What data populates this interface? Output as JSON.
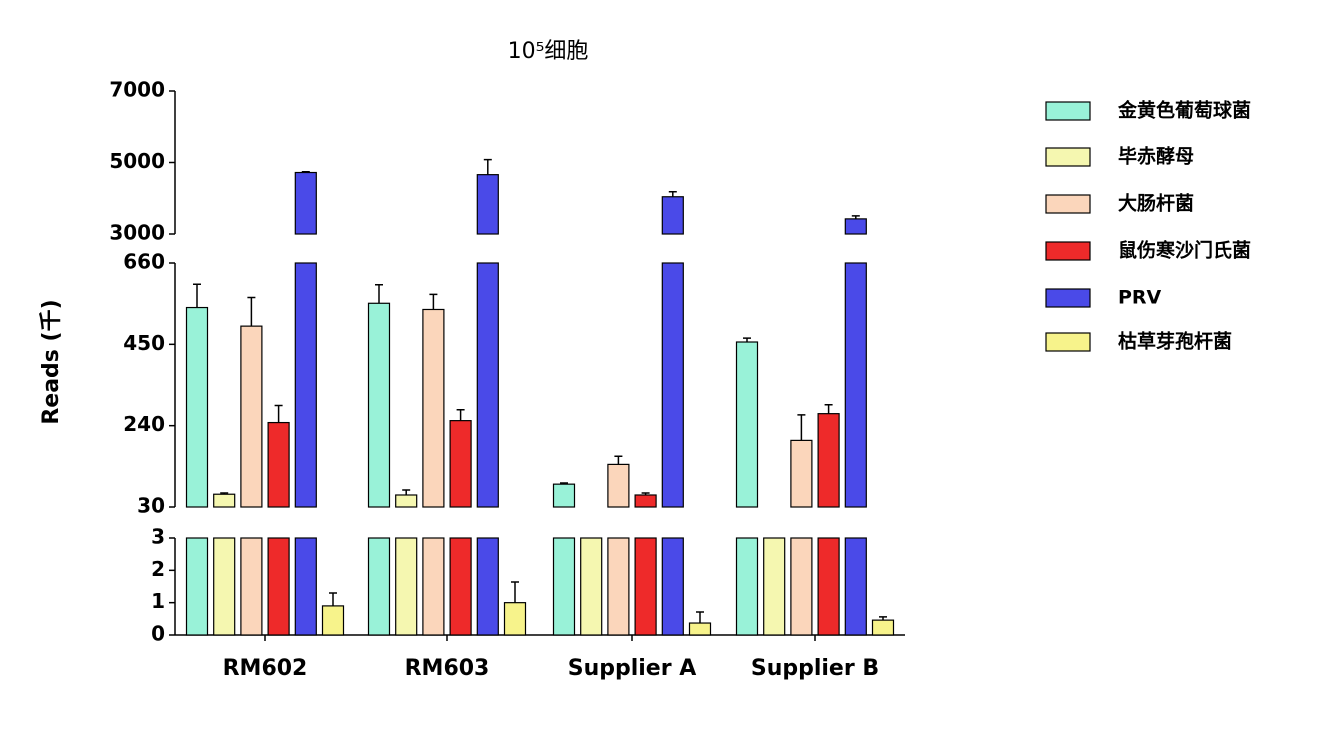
{
  "chart_data": {
    "type": "bar",
    "title": "10⁵细胞",
    "y_label": "Reads (千)",
    "categories": [
      "RM602",
      "RM603",
      "Supplier A",
      "Supplier B"
    ],
    "y_segments": [
      {
        "ylim": [
          0,
          3
        ],
        "yticks": [
          0,
          1,
          2,
          3
        ]
      },
      {
        "ylim": [
          30,
          660
        ],
        "yticks": [
          30,
          240,
          450,
          660
        ]
      },
      {
        "ylim": [
          3000,
          7000
        ],
        "yticks": [
          3000,
          5000,
          7000
        ]
      }
    ],
    "series": [
      {
        "name": "金黄色葡萄球菌",
        "color": "#99f2d8",
        "values": [
          545,
          556,
          89,
          456
        ],
        "errors": [
          60,
          48,
          3,
          10
        ]
      },
      {
        "name": "毕赤酵母",
        "color": "#f5f7b0",
        "values": [
          63,
          61,
          15,
          15
        ],
        "errors": [
          3,
          13,
          0,
          0
        ]
      },
      {
        "name": "大肠杆菌",
        "color": "#fbd6bb",
        "values": [
          497,
          540,
          140,
          202
        ],
        "errors": [
          74,
          39,
          21,
          66
        ]
      },
      {
        "name": "鼠伤寒沙门氏菌",
        "color": "#ee2a2a",
        "values": [
          248,
          253,
          61,
          271
        ],
        "errors": [
          44,
          28,
          5,
          23
        ]
      },
      {
        "name": "PRV",
        "color": "#4a4ae8",
        "values": [
          4720,
          4660,
          4042,
          3423
        ],
        "errors": [
          20,
          420,
          141,
          84
        ]
      },
      {
        "name": "枯草芽孢杆菌",
        "color": "#f7f38b",
        "values": [
          0.9,
          1.0,
          0.37,
          0.46
        ],
        "errors": [
          0.4,
          0.64,
          0.34,
          0.1
        ]
      }
    ],
    "legend_position": "right"
  }
}
